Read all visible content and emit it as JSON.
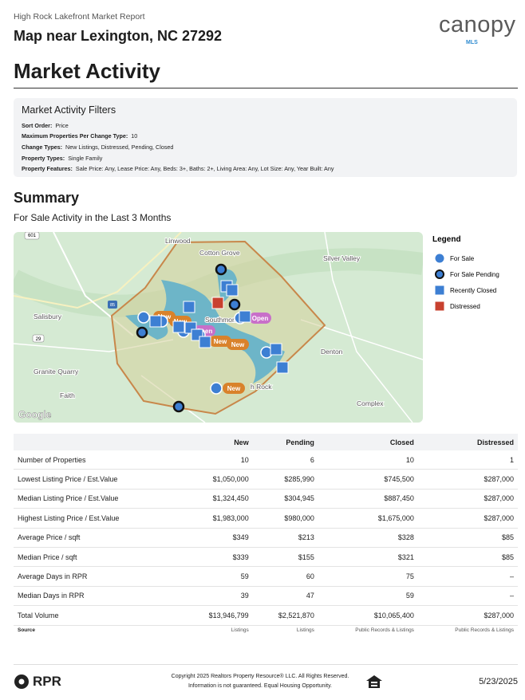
{
  "header": {
    "report_title": "High Rock Lakefront Market Report",
    "location": "Map near Lexington, NC 27292",
    "logo": "canopy",
    "logo_sub": "MLS"
  },
  "section_title": "Market Activity",
  "filters": {
    "title": "Market Activity Filters",
    "items": [
      {
        "label": "Sort Order:",
        "value": "Price"
      },
      {
        "label": "Maximum Properties Per Change Type:",
        "value": "10"
      },
      {
        "label": "Change Types:",
        "value": "New Listings, Distressed, Pending, Closed"
      },
      {
        "label": "Property Types:",
        "value": "Single Family"
      },
      {
        "label": "Property Features:",
        "value": "Sale Price: Any, Lease Price: Any, Beds: 3+, Baths: 2+, Living Area: Any, Lot Size: Any, Year Built: Any"
      }
    ]
  },
  "summary": {
    "title": "Summary",
    "subtitle": "For Sale Activity in the Last 3 Months"
  },
  "map": {
    "places": [
      "Linwood",
      "Cotton Grove",
      "Silver Valley",
      "Salisbury",
      "Southmont",
      "Denton",
      "Granite Quarry",
      "Faith",
      "Complex",
      "h Rock"
    ],
    "shields": [
      "601",
      "85",
      "29"
    ],
    "pill_new": "New",
    "pill_open": "Open",
    "attribution": "Google"
  },
  "legend": {
    "title": "Legend",
    "items": [
      "For Sale",
      "For Sale Pending",
      "Recently Closed",
      "Distressed"
    ]
  },
  "table": {
    "columns": [
      "New",
      "Pending",
      "Closed",
      "Distressed"
    ],
    "rows": [
      {
        "label": "Number of Properties",
        "values": [
          "10",
          "6",
          "10",
          "1"
        ]
      },
      {
        "label": "Lowest Listing Price / Est.Value",
        "values": [
          "$1,050,000",
          "$285,990",
          "$745,500",
          "$287,000"
        ]
      },
      {
        "label": "Median Listing Price / Est.Value",
        "values": [
          "$1,324,450",
          "$304,945",
          "$887,450",
          "$287,000"
        ]
      },
      {
        "label": "Highest Listing Price / Est.Value",
        "values": [
          "$1,983,000",
          "$980,000",
          "$1,675,000",
          "$287,000"
        ]
      },
      {
        "label": "Average Price / sqft",
        "values": [
          "$349",
          "$213",
          "$328",
          "$85"
        ]
      },
      {
        "label": "Median Price / sqft",
        "values": [
          "$339",
          "$155",
          "$321",
          "$85"
        ]
      },
      {
        "label": "Average Days in RPR",
        "values": [
          "59",
          "60",
          "75",
          "–"
        ]
      },
      {
        "label": "Median Days in RPR",
        "values": [
          "39",
          "47",
          "59",
          "–"
        ]
      },
      {
        "label": "Total Volume",
        "values": [
          "$13,946,799",
          "$2,521,870",
          "$10,065,400",
          "$287,000"
        ]
      }
    ],
    "source": {
      "label": "Source",
      "values": [
        "Listings",
        "Listings",
        "Public Records & Listings",
        "Public Records & Listings"
      ]
    }
  },
  "footer": {
    "brand": "RPR",
    "copyright": "Copyright 2025 Realtors Property Resource® LLC. All Rights Reserved.",
    "disclaimer": "Information is not guaranteed. Equal Housing Opportunity.",
    "date": "5/23/2025"
  }
}
